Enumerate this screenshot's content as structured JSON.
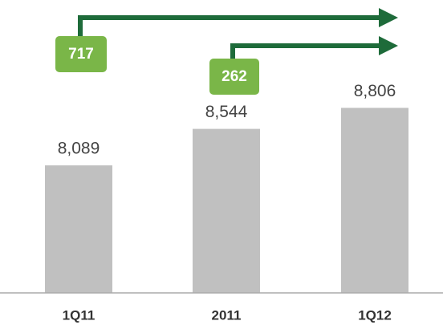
{
  "chart_data": {
    "type": "bar",
    "categories": [
      "1Q11",
      "2011",
      "1Q12"
    ],
    "values": [
      8089,
      8544,
      8806
    ],
    "value_labels": [
      "8,089",
      "8,544",
      "8,806"
    ],
    "color": "#c0c0c0",
    "ylim": [
      6500,
      10150
    ],
    "annotations": [
      {
        "text": "717"
      },
      {
        "text": "262"
      }
    ]
  }
}
